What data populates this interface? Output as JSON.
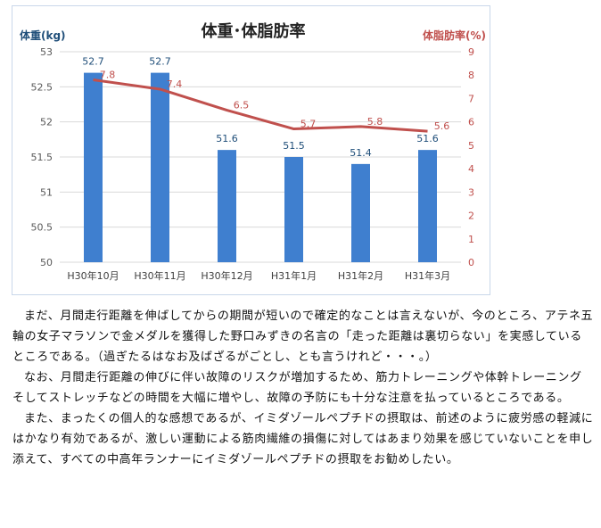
{
  "chart_data": {
    "type": "bar+line",
    "title": "体重･体脂肪率",
    "categories": [
      "H30年10月",
      "H30年11月",
      "H30年12月",
      "H31年1月",
      "H31年2月",
      "H31年3月"
    ],
    "series": [
      {
        "name": "体重(kg)",
        "type": "bar",
        "axis": "left",
        "values": [
          52.7,
          52.7,
          51.6,
          51.5,
          51.4,
          51.6
        ],
        "color": "#3f7fcf"
      },
      {
        "name": "体脂肪率(%)",
        "type": "line",
        "axis": "right",
        "values": [
          7.8,
          7.4,
          6.5,
          5.7,
          5.8,
          5.6
        ],
        "color": "#c0504d"
      }
    ],
    "ylabel": "体重(kg)",
    "y2label": "体脂肪率(%)",
    "ylim": [
      50,
      53
    ],
    "y2lim": [
      0,
      9
    ],
    "yticks": [
      "50",
      "50.5",
      "51",
      "51.5",
      "52",
      "52.5",
      "53"
    ],
    "y2ticks": [
      "0",
      "1",
      "2",
      "3",
      "4",
      "5",
      "6",
      "7",
      "8",
      "9"
    ],
    "grid": true
  },
  "paragraphs": [
    "まだ、月間走行距離を伸ばしてからの期間が短いので確定的なことは言えないが、今のところ、アテネ五輪の女子マラソンで金メダルを獲得した野口みずきの名言の「走った距離は裏切らない」を実感しているところである。（過ぎたるはなお及ばざるがごとし、とも言うけれど・・・。）",
    "なお、月間走行距離の伸びに伴い故障のリスクが増加するため、筋力トレーニングや体幹トレーニングそしてストレッチなどの時間を大幅に増やし、故障の予防にも十分な注意を払っているところである。",
    "また、まったくの個人的な感想であるが、イミダゾールペプチドの摂取は、前述のように疲労感の軽減にはかなり有効であるが、激しい運動による筋肉繊維の損傷に対してはあまり効果を感じていないことを申し添えて、すべての中高年ランナーにイミダゾールペプチドの摂取をお勧めしたい。"
  ]
}
